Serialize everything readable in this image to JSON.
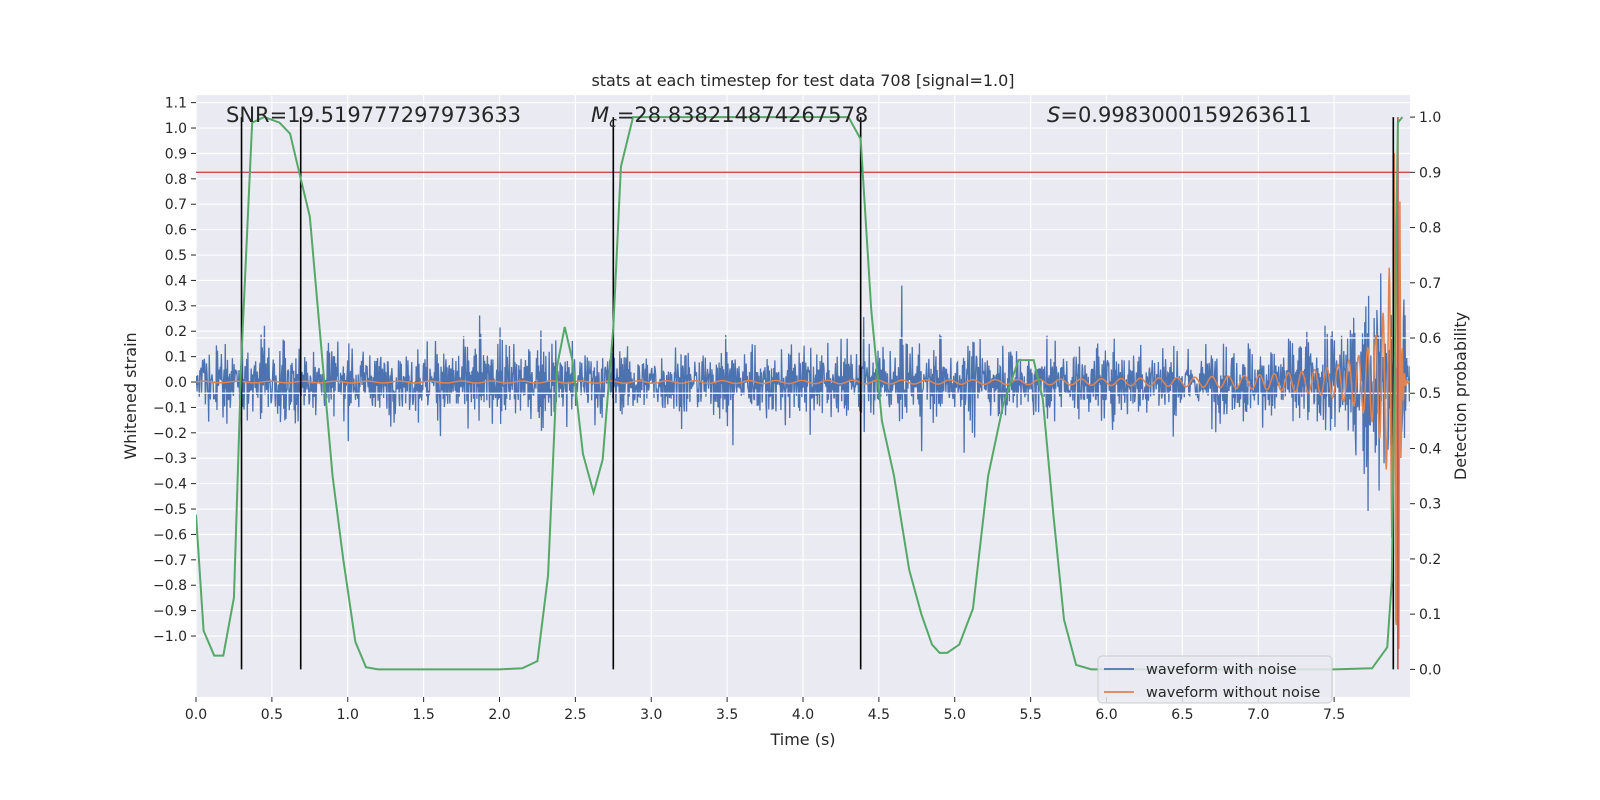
{
  "chart_data": {
    "type": "line",
    "title": "stats at each timestep for test data 708 [signal=1.0]",
    "xlabel": "Time (s)",
    "ylabel": "Whitened strain",
    "ylabel_right": "Detection probability",
    "xlim": [
      0.0,
      8.0
    ],
    "ylim": [
      -1.24,
      1.13
    ],
    "ylim_right": [
      -0.05,
      1.04
    ],
    "x_ticks": [
      "0.0",
      "0.5",
      "1.0",
      "1.5",
      "2.0",
      "2.5",
      "3.0",
      "3.5",
      "4.0",
      "4.5",
      "5.0",
      "5.5",
      "6.0",
      "6.5",
      "7.0",
      "7.5"
    ],
    "y_ticks": [
      "1.1",
      "1.0",
      "0.9",
      "0.8",
      "0.7",
      "0.6",
      "0.5",
      "0.4",
      "0.3",
      "0.2",
      "0.1",
      "0.0",
      "-0.1",
      "-0.2",
      "-0.3",
      "-0.4",
      "-0.5",
      "-0.6",
      "-0.7",
      "-0.8",
      "-0.9",
      "-1.0"
    ],
    "y_ticks_right": [
      "1.0",
      "0.9",
      "0.8",
      "0.7",
      "0.6",
      "0.5",
      "0.4",
      "0.3",
      "0.2",
      "0.1",
      "0.0"
    ],
    "annotations": {
      "snr": "SNR=19.519777297973633",
      "mc_symbol": "M",
      "mc_subscript": "c",
      "mc_value": "=28.838214874267578",
      "s_symbol": "S",
      "s_value": "=0.9983000159263611"
    },
    "legend": {
      "location": "lower right",
      "entries": [
        "waveform with noise",
        "waveform without noise"
      ]
    },
    "threshold_right": 0.9,
    "white_hlines_right": [
      0.5,
      0.6
    ],
    "event_vlines_x": [
      0.3,
      0.69,
      2.75,
      4.38,
      7.89
    ],
    "red_vline_x": 7.92,
    "noise_envelope": {
      "base_amplitude": 0.22,
      "peak_amplitude": 1.15,
      "peak_time": 7.92
    },
    "signal_chirp": {
      "amplitude_start": 0.003,
      "amplitude_peak": 1.05,
      "freq_start_hz": 4.5,
      "merger_time": 7.93
    },
    "detection_probability": {
      "x": [
        0.0,
        0.05,
        0.12,
        0.18,
        0.25,
        0.3,
        0.37,
        0.45,
        0.55,
        0.62,
        0.68,
        0.75,
        0.82,
        0.9,
        0.97,
        1.05,
        1.12,
        1.2,
        1.5,
        2.0,
        2.15,
        2.25,
        2.32,
        2.38,
        2.43,
        2.48,
        2.55,
        2.62,
        2.68,
        2.75,
        2.8,
        2.88,
        3.0,
        4.3,
        4.38,
        4.45,
        4.52,
        4.6,
        4.7,
        4.78,
        4.85,
        4.9,
        4.95,
        5.03,
        5.12,
        5.22,
        5.32,
        5.42,
        5.48,
        5.52,
        5.58,
        5.65,
        5.72,
        5.8,
        5.9,
        6.5,
        7.5,
        7.75,
        7.85,
        7.88,
        7.92,
        7.95
      ],
      "y": [
        0.28,
        0.07,
        0.025,
        0.025,
        0.13,
        0.57,
        0.99,
        1.0,
        0.99,
        0.97,
        0.9,
        0.82,
        0.6,
        0.35,
        0.2,
        0.05,
        0.004,
        0.0,
        0.0,
        0.0,
        0.002,
        0.015,
        0.17,
        0.55,
        0.62,
        0.56,
        0.39,
        0.32,
        0.38,
        0.62,
        0.91,
        1.0,
        1.0,
        1.0,
        0.96,
        0.65,
        0.45,
        0.35,
        0.18,
        0.1,
        0.045,
        0.03,
        0.03,
        0.045,
        0.11,
        0.35,
        0.48,
        0.56,
        0.56,
        0.56,
        0.49,
        0.28,
        0.09,
        0.008,
        0.0,
        0.0,
        0.0,
        0.002,
        0.04,
        0.16,
        0.99,
        1.0
      ]
    },
    "colors": {
      "noise": "#4c72b0",
      "clean": "#dd8452",
      "probability": "#55a868",
      "threshold": "#c44e52",
      "event_lines": "#000000",
      "plot_bg": "#eaeaf2",
      "grid": "#ffffff"
    },
    "grid": true
  }
}
